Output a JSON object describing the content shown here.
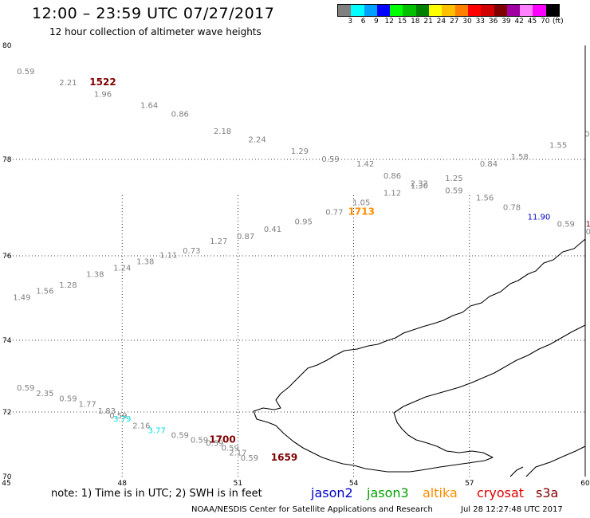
{
  "header": {
    "title": "12:00 – 23:59 UTC 07/27/2017",
    "subtitle": "12 hour collection of altimeter wave heights"
  },
  "colorbar": {
    "unit": "(ft)",
    "labels": [
      "3",
      "6",
      "9",
      "12",
      "15",
      "18",
      "21",
      "24",
      "27",
      "30",
      "33",
      "36",
      "39",
      "42",
      "45",
      "70"
    ],
    "colors": [
      "#808080",
      "#00ffff",
      "#00a0ff",
      "#0000ff",
      "#00ff00",
      "#00c000",
      "#008000",
      "#ffff00",
      "#ffc000",
      "#ff8000",
      "#ff0000",
      "#d00000",
      "#800000",
      "#a000a0",
      "#ff80ff",
      "#ff00ff",
      "#000000"
    ]
  },
  "axes": {
    "lon_ticks": [
      "45",
      "48",
      "51",
      "54",
      "57",
      "60"
    ],
    "lat_ticks": [
      "70",
      "72",
      "74",
      "76",
      "78",
      "80"
    ]
  },
  "map_extent": {
    "lon": [
      45,
      60
    ],
    "lat": [
      70,
      80
    ]
  },
  "track_colors": {
    "gray": "#808080",
    "cyan": "#00e0e0",
    "blue": "#0000c0",
    "orange": "#ff8c00",
    "darkred": "#800000"
  },
  "observations": [
    {
      "text": "0.59",
      "c": "gray",
      "lon": 45.5,
      "lat": 79.5
    },
    {
      "text": "2.21",
      "c": "gray",
      "lon": 46.6,
      "lat": 79.3
    },
    {
      "text": "1522",
      "c": "darkred",
      "lon": 47.5,
      "lat": 79.3
    },
    {
      "text": "1.96",
      "c": "gray",
      "lon": 47.5,
      "lat": 79.1
    },
    {
      "text": "1.64",
      "c": "gray",
      "lon": 48.7,
      "lat": 78.9
    },
    {
      "text": "0.86",
      "c": "gray",
      "lon": 49.5,
      "lat": 78.75
    },
    {
      "text": "2.18",
      "c": "gray",
      "lon": 50.6,
      "lat": 78.45
    },
    {
      "text": "2.24",
      "c": "gray",
      "lon": 51.5,
      "lat": 78.3
    },
    {
      "text": "1.29",
      "c": "gray",
      "lon": 52.6,
      "lat": 78.1
    },
    {
      "text": "0.59",
      "c": "gray",
      "lon": 53.4,
      "lat": 77.95
    },
    {
      "text": "1.42",
      "c": "gray",
      "lon": 54.3,
      "lat": 77.85
    },
    {
      "text": "0.86",
      "c": "gray",
      "lon": 55.0,
      "lat": 77.6
    },
    {
      "text": "2.32",
      "c": "gray",
      "lon": 55.7,
      "lat": 77.45
    },
    {
      "text": "1.30",
      "c": "gray",
      "lon": 55.7,
      "lat": 77.4
    },
    {
      "text": "1.25",
      "c": "gray",
      "lon": 56.6,
      "lat": 77.55
    },
    {
      "text": "0.84",
      "c": "gray",
      "lon": 57.5,
      "lat": 77.85
    },
    {
      "text": "1.58",
      "c": "gray",
      "lon": 58.3,
      "lat": 78.0
    },
    {
      "text": "1.55",
      "c": "gray",
      "lon": 59.3,
      "lat": 78.2
    },
    {
      "text": "0",
      "c": "gray",
      "lon": 60.05,
      "lat": 78.4
    },
    {
      "text": "1.12",
      "c": "gray",
      "lon": 55.0,
      "lat": 77.25
    },
    {
      "text": "0.59",
      "c": "gray",
      "lon": 56.6,
      "lat": 77.3
    },
    {
      "text": "1.56",
      "c": "gray",
      "lon": 57.4,
      "lat": 77.15
    },
    {
      "text": "0.78",
      "c": "gray",
      "lon": 58.1,
      "lat": 76.95
    },
    {
      "text": "11.90",
      "c": "blue",
      "lon": 58.8,
      "lat": 76.75
    },
    {
      "text": "0.59",
      "c": "gray",
      "lon": 59.5,
      "lat": 76.6
    },
    {
      "text": "1",
      "c": "darkred",
      "lon": 60.08,
      "lat": 76.6
    },
    {
      "text": "0",
      "c": "gray",
      "lon": 60.08,
      "lat": 76.45
    },
    {
      "text": "1.05",
      "c": "gray",
      "lon": 54.2,
      "lat": 77.05
    },
    {
      "text": "1713",
      "c": "orange",
      "lon": 54.2,
      "lat": 76.85
    },
    {
      "text": "0.77",
      "c": "gray",
      "lon": 53.5,
      "lat": 76.85
    },
    {
      "text": "0.95",
      "c": "gray",
      "lon": 52.7,
      "lat": 76.65
    },
    {
      "text": "0.41",
      "c": "gray",
      "lon": 51.9,
      "lat": 76.5
    },
    {
      "text": "0.87",
      "c": "gray",
      "lon": 51.2,
      "lat": 76.35
    },
    {
      "text": "1.27",
      "c": "gray",
      "lon": 50.5,
      "lat": 76.25
    },
    {
      "text": "0.73",
      "c": "gray",
      "lon": 49.8,
      "lat": 76.05
    },
    {
      "text": "1.11",
      "c": "gray",
      "lon": 49.2,
      "lat": 75.95
    },
    {
      "text": "1.38",
      "c": "gray",
      "lon": 48.6,
      "lat": 75.8
    },
    {
      "text": "1.24",
      "c": "gray",
      "lon": 48.0,
      "lat": 75.65
    },
    {
      "text": "1.38",
      "c": "gray",
      "lon": 47.3,
      "lat": 75.5
    },
    {
      "text": "1.28",
      "c": "gray",
      "lon": 46.6,
      "lat": 75.25
    },
    {
      "text": "1.56",
      "c": "gray",
      "lon": 46.0,
      "lat": 75.1
    },
    {
      "text": "1.49",
      "c": "gray",
      "lon": 45.4,
      "lat": 74.95
    },
    {
      "text": "0.59",
      "c": "gray",
      "lon": 45.5,
      "lat": 72.6
    },
    {
      "text": "2.35",
      "c": "gray",
      "lon": 46.0,
      "lat": 72.45
    },
    {
      "text": "0.59",
      "c": "gray",
      "lon": 46.6,
      "lat": 72.3
    },
    {
      "text": "1.77",
      "c": "gray",
      "lon": 47.1,
      "lat": 72.15
    },
    {
      "text": "1.83",
      "c": "gray",
      "lon": 47.6,
      "lat": 71.95
    },
    {
      "text": "0.59",
      "c": "gray",
      "lon": 47.9,
      "lat": 71.8
    },
    {
      "text": "3.79",
      "c": "cyan",
      "lon": 48.0,
      "lat": 71.7
    },
    {
      "text": "2.16",
      "c": "gray",
      "lon": 48.5,
      "lat": 71.5
    },
    {
      "text": "3.77",
      "c": "cyan",
      "lon": 48.9,
      "lat": 71.35
    },
    {
      "text": "0.59",
      "c": "gray",
      "lon": 49.5,
      "lat": 71.2
    },
    {
      "text": "0.59",
      "c": "gray",
      "lon": 50.0,
      "lat": 71.05
    },
    {
      "text": "1700",
      "c": "darkred",
      "lon": 50.6,
      "lat": 71.05
    },
    {
      "text": "0.59",
      "c": "gray",
      "lon": 50.4,
      "lat": 70.95
    },
    {
      "text": "0.59",
      "c": "gray",
      "lon": 50.8,
      "lat": 70.8
    },
    {
      "text": "2.17",
      "c": "gray",
      "lon": 51.0,
      "lat": 70.65
    },
    {
      "text": "0.59",
      "c": "gray",
      "lon": 51.3,
      "lat": 70.5
    },
    {
      "text": "1659",
      "c": "darkred",
      "lon": 52.2,
      "lat": 70.5
    }
  ],
  "footer": {
    "note": "note:  1) Time is in UTC;  2) SWH is in feet",
    "legend": [
      {
        "name": "jason2",
        "color": "#0000c8"
      },
      {
        "name": "jason3",
        "color": "#00a000"
      },
      {
        "name": "altika",
        "color": "#ff8c00"
      },
      {
        "name": "cryosat",
        "color": "#e00000"
      },
      {
        "name": "s3a",
        "color": "#800000"
      }
    ],
    "credit": "NOAA/NESDIS Center for Satellite Applications and Research",
    "timestamp": "Jul 28 12:27:48 UTC 2017"
  }
}
